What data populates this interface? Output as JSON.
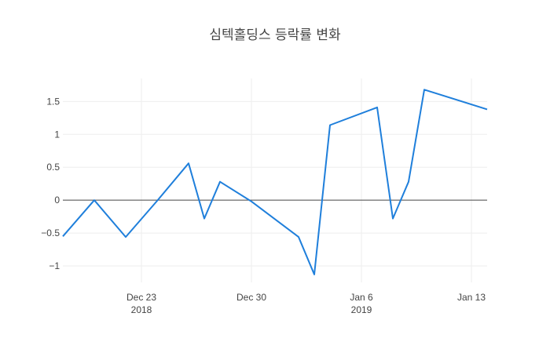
{
  "chart_data": {
    "type": "line",
    "title": "심텍홀딩스 등락률 변화",
    "xlabel": "",
    "ylabel": "",
    "x": [
      "2018-12-18",
      "2018-12-20",
      "2018-12-22",
      "2018-12-24",
      "2018-12-26",
      "2018-12-27",
      "2018-12-28",
      "2018-12-30",
      "2019-01-02",
      "2019-01-03",
      "2019-01-04",
      "2019-01-07",
      "2019-01-08",
      "2019-01-09",
      "2019-01-10",
      "2019-01-14"
    ],
    "series": [
      {
        "values": [
          -0.55,
          0.0,
          -0.56,
          -0.01,
          0.56,
          -0.28,
          0.28,
          -0.02,
          -0.56,
          -1.13,
          1.14,
          1.41,
          -0.28,
          0.28,
          1.68,
          1.38
        ]
      }
    ],
    "xlim": [
      "2018-12-18",
      "2019-01-14"
    ],
    "ylim": [
      -1.25,
      1.85
    ],
    "y_ticks": [
      1.5,
      1,
      0.5,
      0,
      -0.5,
      -1
    ],
    "y_tick_labels": [
      "1.5",
      "1",
      "0.5",
      "0",
      "−0.5",
      "−1"
    ],
    "x_ticks": [
      {
        "date": "2018-12-23",
        "label": "Dec 23",
        "sublabel": "2018"
      },
      {
        "date": "2018-12-30",
        "label": "Dec 30",
        "sublabel": ""
      },
      {
        "date": "2019-01-06",
        "label": "Jan 6",
        "sublabel": "2019"
      },
      {
        "date": "2019-01-13",
        "label": "Jan 13",
        "sublabel": ""
      }
    ],
    "grid": true,
    "legend": "none",
    "colors": {
      "line": "#1f7fdb",
      "zero_line": "#444444",
      "grid": "#eeeeee",
      "text": "#444444"
    }
  }
}
